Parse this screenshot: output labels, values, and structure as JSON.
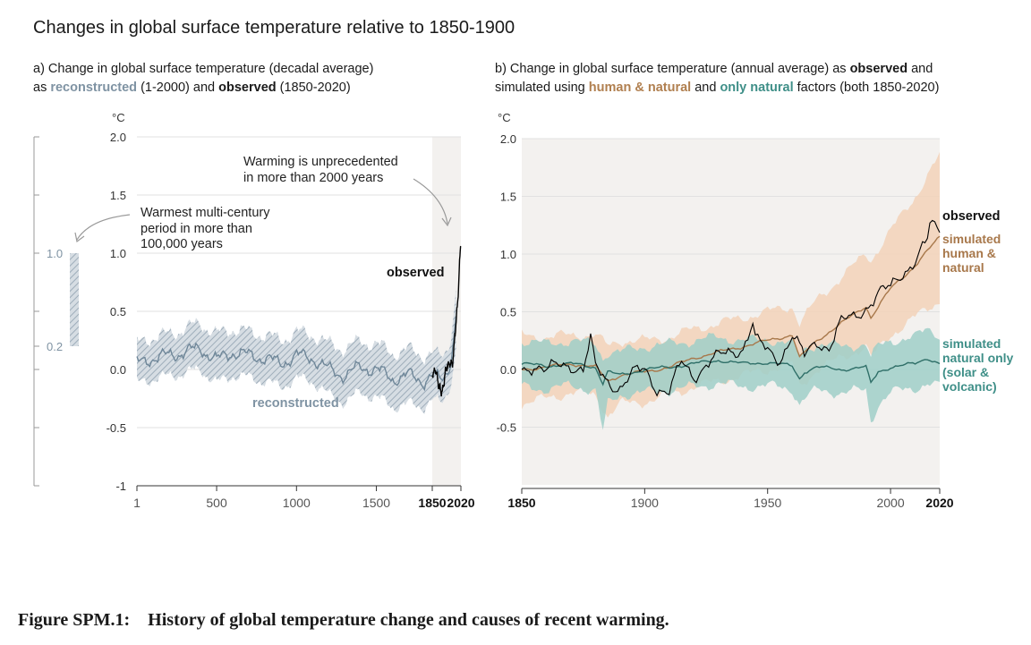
{
  "title": "Changes in global surface temperature relative to 1850-1900",
  "panel_a": {
    "title_parts": {
      "p1": "a) Change in global surface temperature (decadal average)",
      "p2": "as ",
      "p3": "reconstructed",
      "p4": " (1-2000) and ",
      "p5": "observed",
      "p6": " (1850-2020)"
    },
    "unit": "°C",
    "annotations": {
      "unprecedented_1": "Warming is unprecedented",
      "unprecedented_2": "in more than 2000 years",
      "warmest_1": "Warmest multi-century",
      "warmest_2": "period in more than",
      "warmest_3": "100,000 years",
      "observed_label": "observed",
      "reconstructed_label": "reconstructed"
    },
    "side_bar": {
      "labels": [
        "1.0",
        "0.2"
      ],
      "low": 0.2,
      "high": 1.0
    }
  },
  "panel_b": {
    "title_parts": {
      "p1": "b) Change in global surface temperature (annual average) as ",
      "p2": "observed",
      "p3": " and",
      "p4": "simulated using ",
      "p5": "human & natural",
      "p6": " and ",
      "p7": "only natural",
      "p8": " factors (both 1850-2020)"
    },
    "unit": "°C",
    "labels": {
      "observed": "observed",
      "human_1": "simulated",
      "human_2": "human &",
      "human_3": "natural",
      "natural_1": "simulated",
      "natural_2": "natural only",
      "natural_3": "(solar &",
      "natural_4": "volcanic)"
    }
  },
  "caption": "Figure SPM.1:    History of global temperature change and causes of recent warming.",
  "colors": {
    "reconstructed": "#6f8799",
    "reconstructed_band": "#b8c4cf",
    "observed": "#000000",
    "human_natural": "#a8784b",
    "human_natural_band": "#f2d2b8",
    "natural": "#2f6f68",
    "natural_band": "#9fcfc8",
    "shade": "#f3f1ef",
    "grid": "#dddddd"
  },
  "chart_data": [
    {
      "type": "line",
      "panel": "a",
      "ylim": [
        -1,
        2
      ],
      "xlim": [
        1,
        2020
      ],
      "x_ticks": [
        "1",
        "500",
        "1000",
        "1500",
        "1850",
        "2020"
      ],
      "x_tick_values": [
        1,
        500,
        1000,
        1500,
        1850,
        2020
      ],
      "x_tick_bold": [
        false,
        false,
        false,
        false,
        true,
        true
      ],
      "y_ticks": [
        "2.0",
        "1.5",
        "1.0",
        "0.5",
        "0.0",
        "-0.5",
        "-1"
      ],
      "y_tick_values": [
        2.0,
        1.5,
        1.0,
        0.5,
        0.0,
        -0.5,
        -1.0
      ],
      "shaded_region": [
        1850,
        2020
      ],
      "series": [
        {
          "name": "reconstructed",
          "x": [
            1,
            100,
            200,
            300,
            400,
            500,
            600,
            700,
            800,
            900,
            1000,
            1100,
            1200,
            1300,
            1400,
            1500,
            1600,
            1700,
            1800,
            1850,
            1900,
            1950,
            2000
          ],
          "y": [
            0.05,
            0.1,
            0.12,
            0.15,
            0.18,
            0.08,
            0.15,
            0.12,
            0.1,
            0.05,
            0.12,
            0.1,
            0.0,
            -0.05,
            0.02,
            0.0,
            -0.08,
            -0.05,
            -0.1,
            -0.05,
            -0.1,
            0.0,
            0.55
          ],
          "low": [
            -0.12,
            -0.08,
            -0.06,
            -0.03,
            0.0,
            -0.12,
            -0.05,
            -0.07,
            -0.1,
            -0.15,
            -0.08,
            -0.1,
            -0.22,
            -0.28,
            -0.2,
            -0.24,
            -0.32,
            -0.3,
            -0.32,
            -0.26,
            -0.3,
            -0.18,
            0.25
          ],
          "high": [
            0.22,
            0.28,
            0.3,
            0.35,
            0.4,
            0.3,
            0.35,
            0.32,
            0.3,
            0.25,
            0.32,
            0.3,
            0.22,
            0.18,
            0.24,
            0.22,
            0.14,
            0.17,
            0.12,
            0.14,
            0.1,
            0.2,
            0.8
          ]
        },
        {
          "name": "observed",
          "x": [
            1850,
            1870,
            1890,
            1910,
            1930,
            1950,
            1970,
            1980,
            1990,
            2000,
            2010,
            2020
          ],
          "y": [
            -0.05,
            0.0,
            -0.15,
            -0.2,
            0.0,
            0.05,
            0.05,
            0.2,
            0.4,
            0.55,
            0.85,
            1.1
          ]
        }
      ]
    },
    {
      "type": "line",
      "panel": "b",
      "ylim": [
        -1,
        2
      ],
      "xlim": [
        1850,
        2020
      ],
      "x_ticks": [
        "1850",
        "1900",
        "1950",
        "2000",
        "2020"
      ],
      "x_tick_values": [
        1850,
        1900,
        1950,
        2000,
        2020
      ],
      "x_tick_bold": [
        true,
        false,
        false,
        false,
        true
      ],
      "y_ticks": [
        "2.0",
        "1.5",
        "1.0",
        "0.5",
        "0.0",
        "-0.5"
      ],
      "y_tick_values": [
        2.0,
        1.5,
        1.0,
        0.5,
        0.0,
        -0.5
      ],
      "series": [
        {
          "name": "observed",
          "x": [
            1850,
            1855,
            1860,
            1865,
            1870,
            1875,
            1878,
            1880,
            1885,
            1890,
            1895,
            1900,
            1905,
            1910,
            1915,
            1920,
            1925,
            1930,
            1935,
            1940,
            1944,
            1945,
            1950,
            1955,
            1960,
            1965,
            1970,
            1975,
            1980,
            1985,
            1990,
            1995,
            2000,
            2005,
            2010,
            2015,
            2016,
            2020
          ],
          "y": [
            0.0,
            0.05,
            -0.02,
            0.03,
            0.05,
            0.0,
            0.25,
            0.0,
            -0.1,
            -0.15,
            -0.05,
            0.0,
            -0.15,
            -0.2,
            0.05,
            -0.05,
            0.05,
            0.1,
            0.15,
            0.2,
            0.4,
            0.25,
            0.15,
            0.1,
            0.3,
            0.1,
            0.25,
            0.2,
            0.4,
            0.45,
            0.55,
            0.65,
            0.7,
            0.85,
            0.95,
            1.1,
            1.25,
            1.2
          ]
        },
        {
          "name": "simulated human & natural",
          "x": [
            1850,
            1860,
            1870,
            1880,
            1885,
            1890,
            1900,
            1910,
            1920,
            1930,
            1940,
            1950,
            1960,
            1963,
            1970,
            1980,
            1990,
            1992,
            2000,
            2010,
            2020
          ],
          "y": [
            0.0,
            0.02,
            0.05,
            0.02,
            -0.1,
            -0.05,
            -0.02,
            0.02,
            0.1,
            0.15,
            0.2,
            0.25,
            0.3,
            0.1,
            0.25,
            0.4,
            0.55,
            0.45,
            0.7,
            0.9,
            1.15
          ],
          "low": [
            -0.3,
            -0.25,
            -0.2,
            -0.22,
            -0.4,
            -0.3,
            -0.28,
            -0.22,
            -0.15,
            -0.1,
            -0.05,
            0.0,
            0.05,
            -0.15,
            0.0,
            0.1,
            0.2,
            0.1,
            0.3,
            0.45,
            0.6
          ],
          "high": [
            0.3,
            0.28,
            0.3,
            0.3,
            0.2,
            0.25,
            0.25,
            0.28,
            0.35,
            0.4,
            0.45,
            0.5,
            0.55,
            0.4,
            0.6,
            0.8,
            1.0,
            0.95,
            1.2,
            1.5,
            1.85
          ]
        },
        {
          "name": "simulated natural only",
          "x": [
            1850,
            1860,
            1870,
            1880,
            1883,
            1885,
            1890,
            1900,
            1910,
            1920,
            1930,
            1940,
            1950,
            1960,
            1963,
            1965,
            1970,
            1980,
            1990,
            1992,
            1995,
            2000,
            2010,
            2015,
            2020
          ],
          "y": [
            0.05,
            0.03,
            0.05,
            0.02,
            -0.12,
            -0.02,
            -0.05,
            0.0,
            0.02,
            0.05,
            0.08,
            0.05,
            0.06,
            0.03,
            -0.08,
            -0.02,
            0.02,
            0.0,
            0.02,
            -0.12,
            -0.02,
            0.02,
            0.05,
            0.1,
            0.05
          ],
          "low": [
            -0.15,
            -0.17,
            -0.14,
            -0.18,
            -0.55,
            -0.3,
            -0.22,
            -0.2,
            -0.18,
            -0.15,
            -0.12,
            -0.15,
            -0.14,
            -0.17,
            -0.3,
            -0.25,
            -0.18,
            -0.2,
            -0.18,
            -0.45,
            -0.3,
            -0.2,
            -0.16,
            -0.12,
            -0.15
          ],
          "high": [
            0.25,
            0.22,
            0.25,
            0.22,
            0.1,
            0.15,
            0.15,
            0.2,
            0.22,
            0.25,
            0.28,
            0.25,
            0.26,
            0.22,
            0.12,
            0.18,
            0.22,
            0.2,
            0.22,
            0.1,
            0.2,
            0.25,
            0.28,
            0.35,
            0.3
          ]
        }
      ]
    }
  ]
}
